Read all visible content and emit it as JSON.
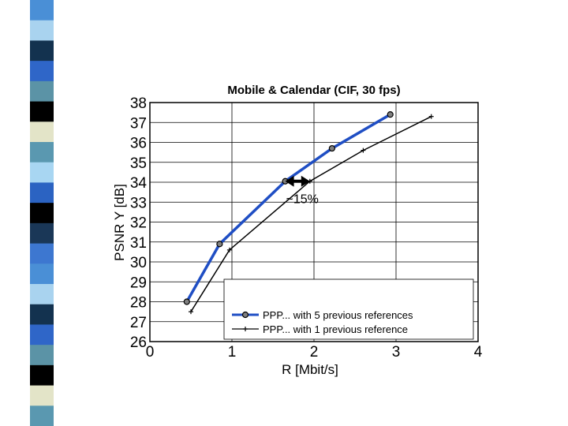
{
  "colors": {
    "stripe": [
      "#4a8fd6",
      "#a9d3ef",
      "#13324f",
      "#2f66c8",
      "#5b93a6",
      "#000000",
      "#e3e4c8",
      "#5a98b0",
      "#a8d6f2",
      "#2b63c2",
      "#000000",
      "#1a3757",
      "#3d77d0"
    ],
    "series_5ref": "#1f4ec4",
    "series_1ref": "#000000"
  },
  "chart_data": {
    "type": "line",
    "title": "Mobile & Calendar (CIF, 30 fps)",
    "xlabel": "R [Mbit/s]",
    "ylabel": "PSNR Y [dB]",
    "xlim": [
      0,
      4
    ],
    "ylim": [
      26,
      38
    ],
    "xticks": [
      "0",
      "1",
      "2",
      "3",
      "4"
    ],
    "yticks": [
      "26",
      "27",
      "28",
      "29",
      "30",
      "31",
      "32",
      "33",
      "34",
      "35",
      "36",
      "37",
      "38"
    ],
    "grid": true,
    "legend_position": "bottom-right",
    "series": [
      {
        "name": "PPP... with 5 previous references",
        "marker": "circle",
        "x": [
          0.45,
          0.85,
          1.65,
          2.22,
          2.93
        ],
        "y": [
          28.0,
          30.9,
          34.05,
          35.7,
          37.4
        ]
      },
      {
        "name": "PPP... with 1 previous reference",
        "marker": "plus",
        "x": [
          0.5,
          0.97,
          1.95,
          2.6,
          3.43
        ],
        "y": [
          27.5,
          30.6,
          34.05,
          35.6,
          37.3
        ]
      }
    ],
    "annotation": {
      "text": "~15%",
      "y": 34.05,
      "x_from": 1.65,
      "x_to": 1.95
    }
  }
}
